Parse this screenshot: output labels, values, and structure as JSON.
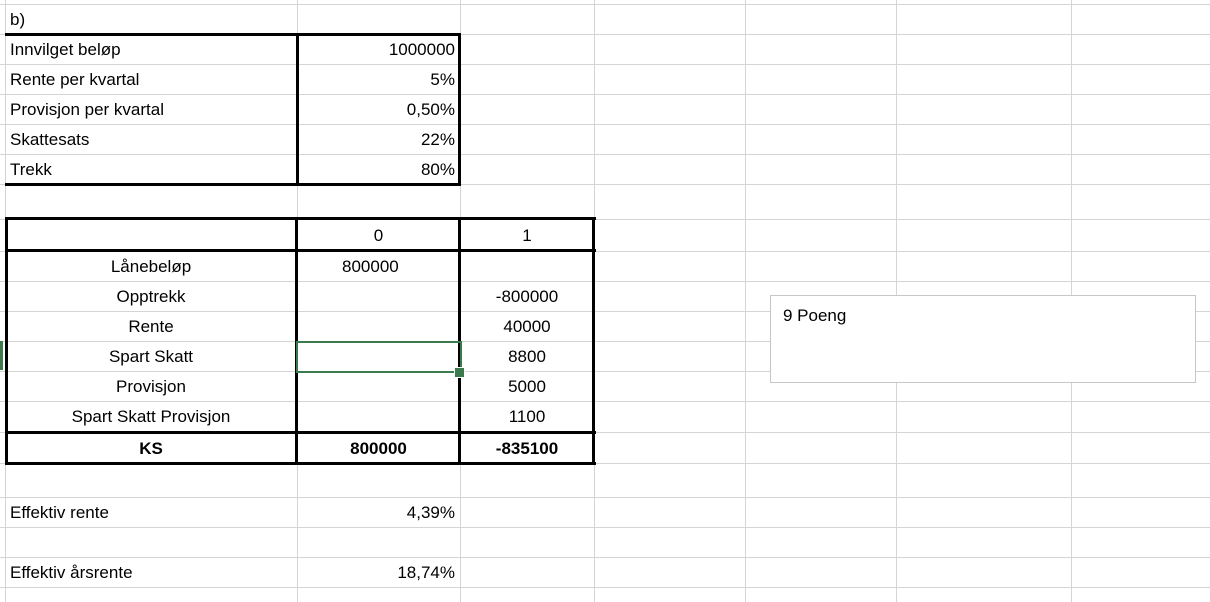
{
  "header": {
    "label": "b)"
  },
  "params": [
    {
      "label": "Innvilget beløp",
      "value": "1000000"
    },
    {
      "label": "Rente per kvartal",
      "value": "5%"
    },
    {
      "label": "Provisjon per kvartal",
      "value": "0,50%"
    },
    {
      "label": "Skattesats",
      "value": "22%"
    },
    {
      "label": "Trekk",
      "value": "80%"
    }
  ],
  "cashflow": {
    "columns": [
      "0",
      "1"
    ],
    "rows": [
      {
        "label": "Lånebeløp",
        "c0": "800000",
        "c1": ""
      },
      {
        "label": "Opptrekk",
        "c0": "",
        "c1": "-800000"
      },
      {
        "label": "Rente",
        "c0": "",
        "c1": "40000"
      },
      {
        "label": "Spart Skatt",
        "c0": "",
        "c1": "8800"
      },
      {
        "label": "Provisjon",
        "c0": "",
        "c1": "5000"
      },
      {
        "label": "Spart Skatt Provisjon",
        "c0": "",
        "c1": "1100"
      }
    ],
    "total": {
      "label": "KS",
      "c0": "800000",
      "c1": "-835100"
    }
  },
  "results": [
    {
      "label": "Effektiv rente",
      "value": "4,39%"
    },
    {
      "label": "Effektiv årsrente",
      "value": "18,74%"
    }
  ],
  "note": {
    "text": "9 Poeng"
  },
  "colors": {
    "selection": "#3b7a4c",
    "gridline": "#d4d4d4"
  }
}
